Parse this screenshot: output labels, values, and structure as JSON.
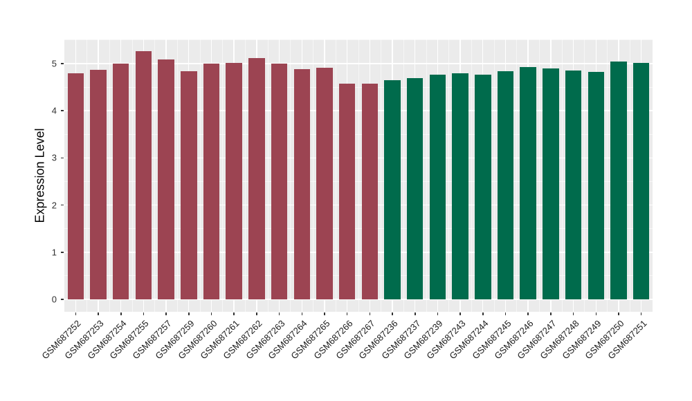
{
  "chart_data": {
    "type": "bar",
    "title": "",
    "xlabel": "",
    "ylabel": "Expression Level",
    "ylim": [
      -0.2625,
      5.5125
    ],
    "yticks": [
      0,
      1,
      2,
      3,
      4,
      5
    ],
    "grid": "white major and minor gridlines on gray panel, legend none",
    "legend_position": "none",
    "bar_groups": [
      {
        "name": "group1",
        "color": "#9C4452"
      },
      {
        "name": "group2",
        "color": "#006B4C"
      }
    ],
    "bars": [
      {
        "label": "GSM687252",
        "value": 4.8,
        "group": "group1"
      },
      {
        "label": "GSM687253",
        "value": 4.87,
        "group": "group1"
      },
      {
        "label": "GSM687254",
        "value": 5.0,
        "group": "group1"
      },
      {
        "label": "GSM687255",
        "value": 5.26,
        "group": "group1"
      },
      {
        "label": "GSM687257",
        "value": 5.09,
        "group": "group1"
      },
      {
        "label": "GSM687259",
        "value": 4.84,
        "group": "group1"
      },
      {
        "label": "GSM687260",
        "value": 5.0,
        "group": "group1"
      },
      {
        "label": "GSM687261",
        "value": 5.01,
        "group": "group1"
      },
      {
        "label": "GSM687262",
        "value": 5.11,
        "group": "group1"
      },
      {
        "label": "GSM687263",
        "value": 5.0,
        "group": "group1"
      },
      {
        "label": "GSM687264",
        "value": 4.88,
        "group": "group1"
      },
      {
        "label": "GSM687265",
        "value": 4.91,
        "group": "group1"
      },
      {
        "label": "GSM687266",
        "value": 4.57,
        "group": "group1"
      },
      {
        "label": "GSM687267",
        "value": 4.58,
        "group": "group1"
      },
      {
        "label": "GSM687236",
        "value": 4.65,
        "group": "group2"
      },
      {
        "label": "GSM687237",
        "value": 4.69,
        "group": "group2"
      },
      {
        "label": "GSM687239",
        "value": 4.76,
        "group": "group2"
      },
      {
        "label": "GSM687243",
        "value": 4.8,
        "group": "group2"
      },
      {
        "label": "GSM687244",
        "value": 4.76,
        "group": "group2"
      },
      {
        "label": "GSM687245",
        "value": 4.84,
        "group": "group2"
      },
      {
        "label": "GSM687246",
        "value": 4.93,
        "group": "group2"
      },
      {
        "label": "GSM687247",
        "value": 4.89,
        "group": "group2"
      },
      {
        "label": "GSM687248",
        "value": 4.86,
        "group": "group2"
      },
      {
        "label": "GSM687249",
        "value": 4.83,
        "group": "group2"
      },
      {
        "label": "GSM687250",
        "value": 5.05,
        "group": "group2"
      },
      {
        "label": "GSM687251",
        "value": 5.01,
        "group": "group2"
      }
    ],
    "colors": {
      "panel_background": "#EBEBEB",
      "gridline": "#FFFFFF",
      "page_background": "#FFFFFF",
      "axis_text": "#1A1A1A"
    }
  }
}
